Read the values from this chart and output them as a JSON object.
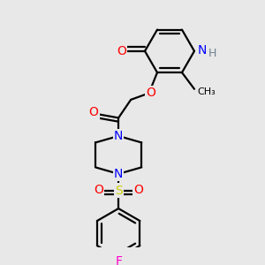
{
  "background_color": "#e8e8e8",
  "line_color": "#000000",
  "line_width": 1.6,
  "atom_colors": {
    "O": "#ff0000",
    "N": "#0000ff",
    "S": "#cccc00",
    "F": "#ff00cc",
    "H": "#708090",
    "C": "#000000"
  },
  "font_size": 9,
  "fig_width": 3.0,
  "fig_height": 3.0,
  "dpi": 100,
  "xlim": [
    0,
    300
  ],
  "ylim": [
    0,
    300
  ]
}
